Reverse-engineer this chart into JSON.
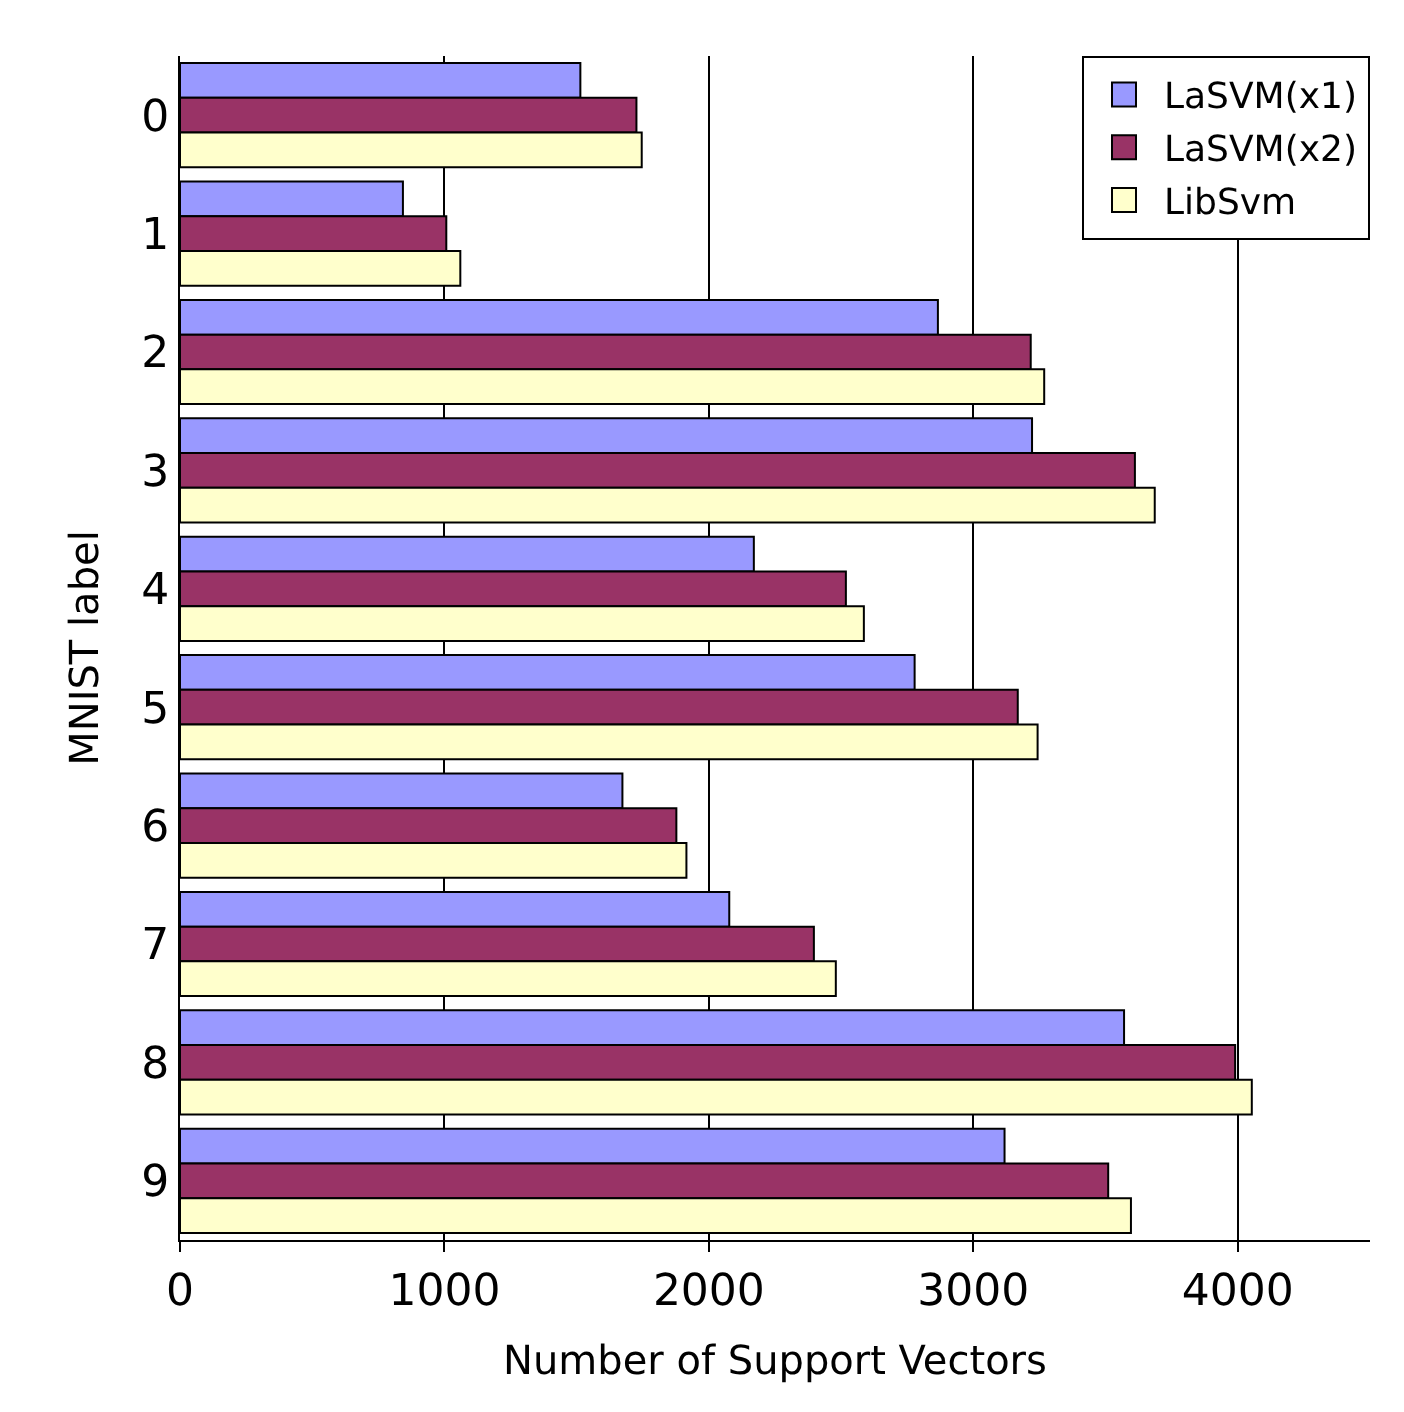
{
  "chart_data": {
    "type": "bar",
    "orientation": "horizontal",
    "xlabel": "Number of Support Vectors",
    "ylabel": "MNIST label",
    "categories": [
      "0",
      "1",
      "2",
      "3",
      "4",
      "5",
      "6",
      "7",
      "8",
      "9"
    ],
    "series": [
      {
        "name": "LaSVM(x1)",
        "color": "#9999ff",
        "values": [
          1514,
          843,
          2866,
          3222,
          2170,
          2778,
          1673,
          2077,
          3570,
          3118
        ]
      },
      {
        "name": "LaSVM(x2)",
        "color": "#993366",
        "values": [
          1726,
          1007,
          3217,
          3611,
          2518,
          3168,
          1877,
          2397,
          3990,
          3510
        ]
      },
      {
        "name": "LibSvm",
        "color": "#ffffcc",
        "values": [
          1746,
          1060,
          3268,
          3686,
          2586,
          3243,
          1915,
          2480,
          4053,
          3596
        ]
      }
    ],
    "xlim": [
      0,
      4500
    ],
    "xticks": [
      0,
      1000,
      2000,
      3000,
      4000
    ],
    "grid": "x",
    "legend": "top right"
  }
}
